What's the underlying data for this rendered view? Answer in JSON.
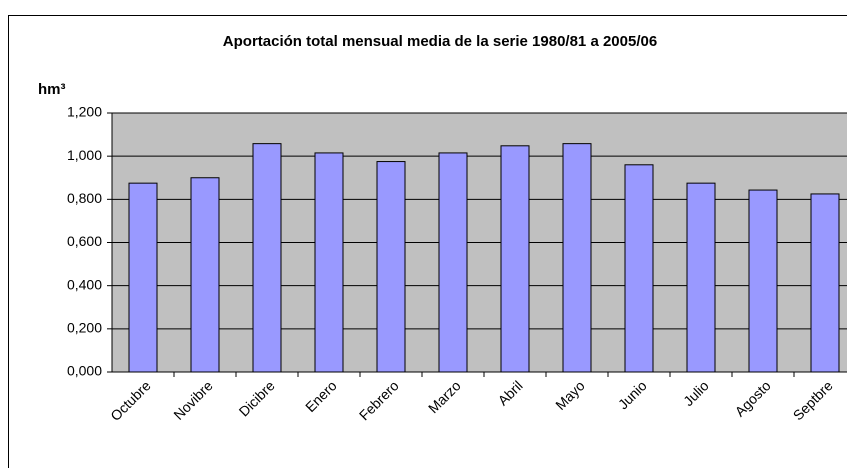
{
  "chart_data": {
    "type": "bar",
    "title": "Aportación total mensual media de la serie 1980/81 a 2005/06",
    "y_label": "hm³",
    "categories": [
      "Octubre",
      "Novibre",
      "Dicibre",
      "Enero",
      "Febrero",
      "Marzo",
      "Abril",
      "Mayo",
      "Junio",
      "Julio",
      "Agosto",
      "Septbre"
    ],
    "values": [
      0.875,
      0.9,
      1.058,
      1.015,
      0.975,
      1.015,
      1.048,
      1.058,
      0.96,
      0.875,
      0.843,
      0.825
    ],
    "color": "#9999ff",
    "ylim": [
      0,
      1.2
    ],
    "yticks": [
      {
        "value": 0,
        "label": "0,000"
      },
      {
        "value": 0.2,
        "label": "0,200"
      },
      {
        "value": 0.4,
        "label": "0,400"
      },
      {
        "value": 0.6,
        "label": "0,600"
      },
      {
        "value": 0.8,
        "label": "0,800"
      },
      {
        "value": 1.0,
        "label": "1,000"
      },
      {
        "value": 1.2,
        "label": "1,200"
      }
    ],
    "grid": true
  }
}
